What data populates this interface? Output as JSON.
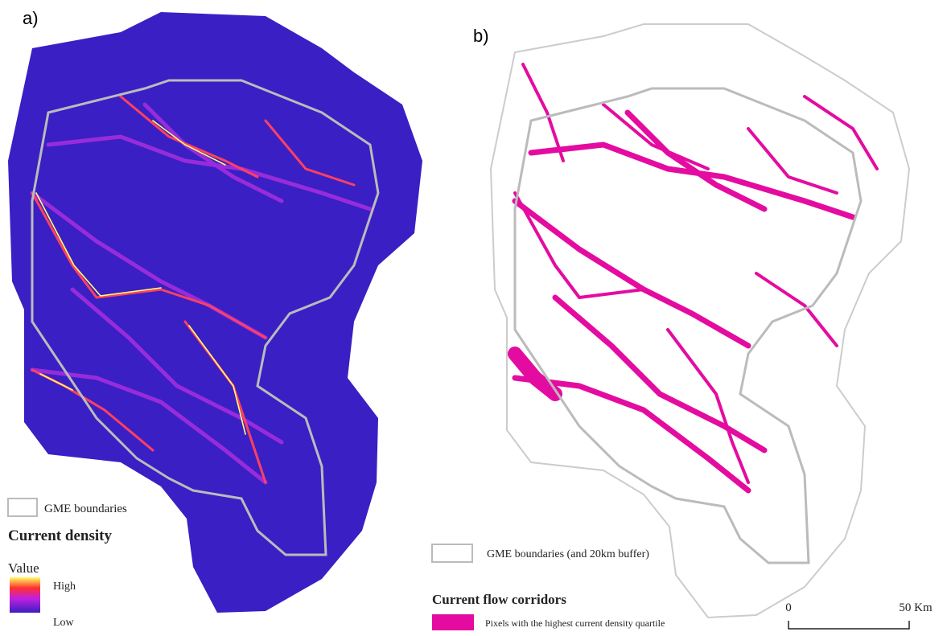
{
  "panels": [
    {
      "label": "a)",
      "legend": {
        "boundary": "GME boundaries",
        "title": "Current density",
        "value_title": "Value",
        "high": "High",
        "low": "Low"
      }
    },
    {
      "label": "b)",
      "legend": {
        "boundary": "GME boundaries (and 20km buffer)",
        "title": "Current flow corridors",
        "item": "Pixels with the highest current density quartile"
      },
      "scale_bar": {
        "start": "0",
        "end": "50 Km"
      }
    }
  ]
}
